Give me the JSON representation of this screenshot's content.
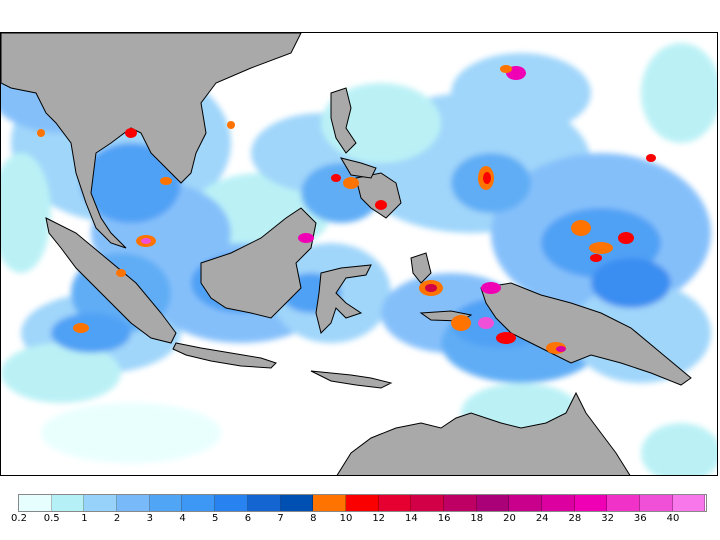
{
  "map": {
    "land_color": "#a9a9a9",
    "coast_color": "#000000",
    "ocean_color": "#ffffff"
  },
  "legend": {
    "colors": [
      "#e6fffe",
      "#b4f0f5",
      "#96d2fa",
      "#78b9fa",
      "#50a5f5",
      "#3c97f5",
      "#2882f0",
      "#1464d2",
      "#0050b4",
      "#ff7300",
      "#fa0000",
      "#e60032",
      "#d20046",
      "#be0064",
      "#aa0078",
      "#c8008c",
      "#dc00a0",
      "#f000b4",
      "#f032c8",
      "#f050d7",
      "#f878eb"
    ],
    "labels": [
      "0.2",
      "0.5",
      "1",
      "2",
      "3",
      "4",
      "5",
      "6",
      "7",
      "8",
      "10",
      "12",
      "14",
      "16",
      "18",
      "20",
      "24",
      "28",
      "32",
      "36",
      "40"
    ]
  }
}
